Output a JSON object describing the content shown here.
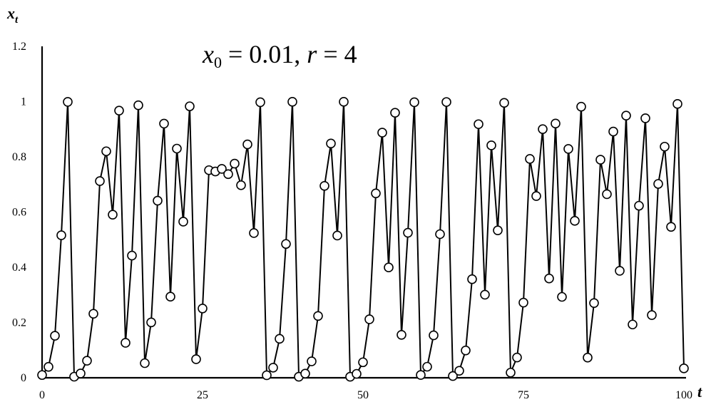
{
  "chart_data": {
    "type": "line",
    "annotation": {
      "var": "x",
      "sub": "0",
      "rest1": " = 0.01, ",
      "rvar": "r",
      "rest2": " = 4"
    },
    "xlabel": "t",
    "ylabel": "x",
    "ylabel_sub": "t",
    "xlim": [
      0,
      100
    ],
    "ylim": [
      0,
      1.2
    ],
    "x_ticks": [
      "0",
      "25",
      "50",
      "75",
      "100"
    ],
    "y_ticks": [
      "0",
      "0.2",
      "0.4",
      "0.6",
      "0.8",
      "1",
      "1.2"
    ],
    "marker": "open-circle",
    "line_color": "#000000",
    "series": [
      {
        "x": [
          0,
          1,
          2,
          3,
          4,
          5,
          6,
          7,
          8,
          9,
          10,
          11,
          12,
          13,
          14,
          15,
          16,
          17,
          18,
          19,
          20,
          21,
          22,
          23,
          24,
          25,
          26,
          27,
          28,
          29,
          30,
          31,
          32,
          33,
          34,
          35,
          36,
          37,
          38,
          39,
          40,
          41,
          42,
          43,
          44,
          45,
          46,
          47,
          48,
          49,
          50,
          51,
          52,
          53,
          54,
          55,
          56,
          57,
          58,
          59,
          60,
          61,
          62,
          63,
          64,
          65,
          66,
          67,
          68,
          69,
          70,
          71,
          72,
          73,
          74,
          75,
          76,
          77,
          78,
          79,
          80,
          81,
          82,
          83,
          84,
          85,
          86,
          87,
          88,
          89,
          90,
          91,
          92,
          93,
          94,
          95,
          96,
          97,
          98,
          99,
          100
        ],
        "values": [
          0.01,
          0.0396,
          0.1521,
          0.5159,
          0.999,
          0.0039,
          0.0157,
          0.0617,
          0.2317,
          0.7121,
          0.82,
          0.5905,
          0.9673,
          0.1266,
          0.4423,
          0.9866,
          0.0529,
          0.2005,
          0.6412,
          0.9202,
          0.2936,
          0.8297,
          0.5653,
          0.9829,
          0.0672,
          0.2508,
          0.7516,
          0.7468,
          0.7564,
          0.7372,
          0.7752,
          0.6971,
          0.8449,
          0.524,
          0.9977,
          0.0092,
          0.0366,
          0.141,
          0.4845,
          0.9991,
          0.0038,
          0.0151,
          0.0595,
          0.2238,
          0.6948,
          0.8482,
          0.515,
          0.9991,
          0.0036,
          0.0142,
          0.0561,
          0.2118,
          0.6677,
          0.8875,
          0.3994,
          0.9595,
          0.1554,
          0.525,
          0.9975,
          0.0101,
          0.04,
          0.1536,
          0.52,
          0.9984,
          0.0064,
          0.0254,
          0.099,
          0.3569,
          0.9181,
          0.3009,
          0.8414,
          0.5338,
          0.9953,
          0.0187,
          0.0734,
          0.2722,
          0.7924,
          0.658,
          0.9002,
          0.3594,
          0.9204,
          0.2929,
          0.8286,
          0.5681,
          0.9814,
          0.073,
          0.2706,
          0.7895,
          0.6648,
          0.8914,
          0.3873,
          0.9492,
          0.1929,
          0.6229,
          0.9396,
          0.227,
          0.7019,
          0.8368,
          0.5463,
          0.9914,
          0.034
        ]
      }
    ]
  }
}
